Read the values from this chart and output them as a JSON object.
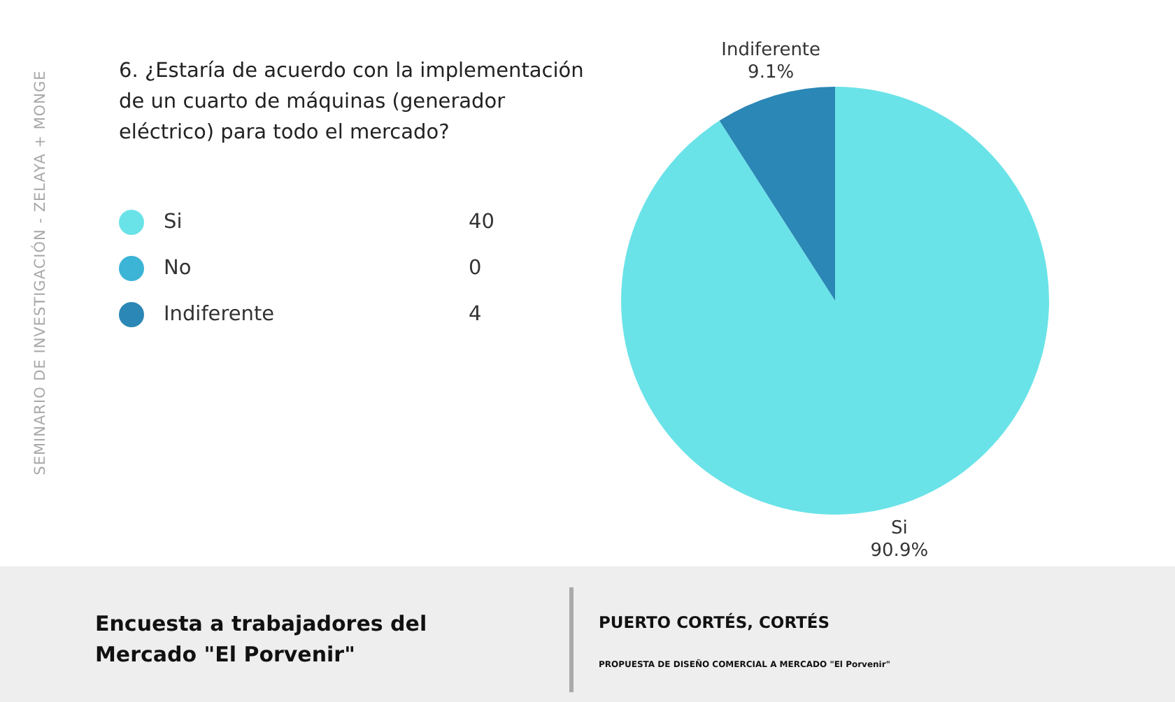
{
  "chart_data": {
    "type": "pie",
    "title": "6. ¿Estaría de acuerdo con la implementación de un cuarto de máquinas (generador eléctrico) para todo el mercado?",
    "categories": [
      "Si",
      "No",
      "Indiferente"
    ],
    "values": [
      40,
      0,
      4
    ],
    "colors": [
      "#6ae3e8",
      "#3bb4d6",
      "#2b87b5"
    ],
    "value_labels": [
      "40",
      "0",
      "4"
    ],
    "legend": "left",
    "annotations": [
      "SEMINARIO DE INVESTIGACIÓN - ZELAYA + MONGE",
      "Encuesta a trabajadores del Mercado \"El Porvenir\"",
      "PUERTO CORTÉS, CORTÉS",
      "PROPUESTA DE DISEÑO COMERCIAL A MERCADO \"El Porvenir\"",
      {
        "text": "90.9%",
        "x": "Si"
      },
      {
        "text": "9.1%",
        "x": "Indiferente"
      }
    ]
  }
}
